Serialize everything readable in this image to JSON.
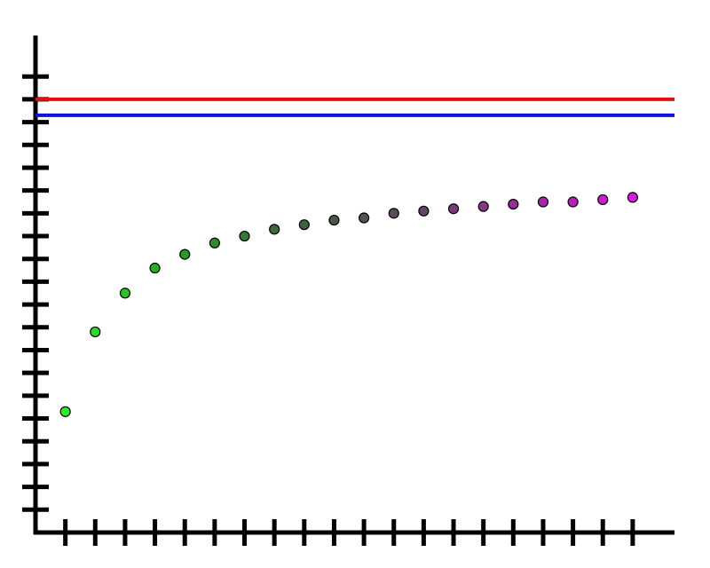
{
  "chart_data": {
    "type": "scatter",
    "x": [
      1,
      2,
      3,
      4,
      5,
      6,
      7,
      8,
      9,
      10,
      11,
      12,
      13,
      14,
      15,
      16,
      17,
      18,
      19,
      20
    ],
    "values": [
      5.3,
      8.8,
      10.5,
      11.6,
      12.2,
      12.7,
      13.0,
      13.3,
      13.5,
      13.7,
      13.8,
      14.0,
      14.1,
      14.2,
      14.3,
      14.4,
      14.5,
      14.5,
      14.6,
      14.7
    ],
    "colors": [
      "#2bef2b",
      "#29db29",
      "#27c527",
      "#26b026",
      "#259b25",
      "#2d8a2d",
      "#347a34",
      "#3a6a3a",
      "#3f5f3f",
      "#485848",
      "#525252",
      "#5a4b5a",
      "#664466",
      "#773c77",
      "#883488",
      "#992c99",
      "#aa25aa",
      "#bb1ebb",
      "#cc1ccc",
      "#dd1bdd"
    ],
    "hlines": [
      {
        "color": "#e01010",
        "value": 19.0
      },
      {
        "color": "#1010e0",
        "value": 18.3
      }
    ],
    "xlim": [
      0,
      21.4
    ],
    "ylim": [
      0,
      21.8
    ],
    "xticks": [
      1,
      2,
      3,
      4,
      5,
      6,
      7,
      8,
      9,
      10,
      11,
      12,
      13,
      14,
      15,
      16,
      17,
      18,
      19,
      20
    ],
    "yticks": [
      1,
      2,
      3,
      4,
      5,
      6,
      7,
      8,
      9,
      10,
      11,
      12,
      13,
      14,
      15,
      16,
      17,
      18,
      19,
      20
    ]
  }
}
